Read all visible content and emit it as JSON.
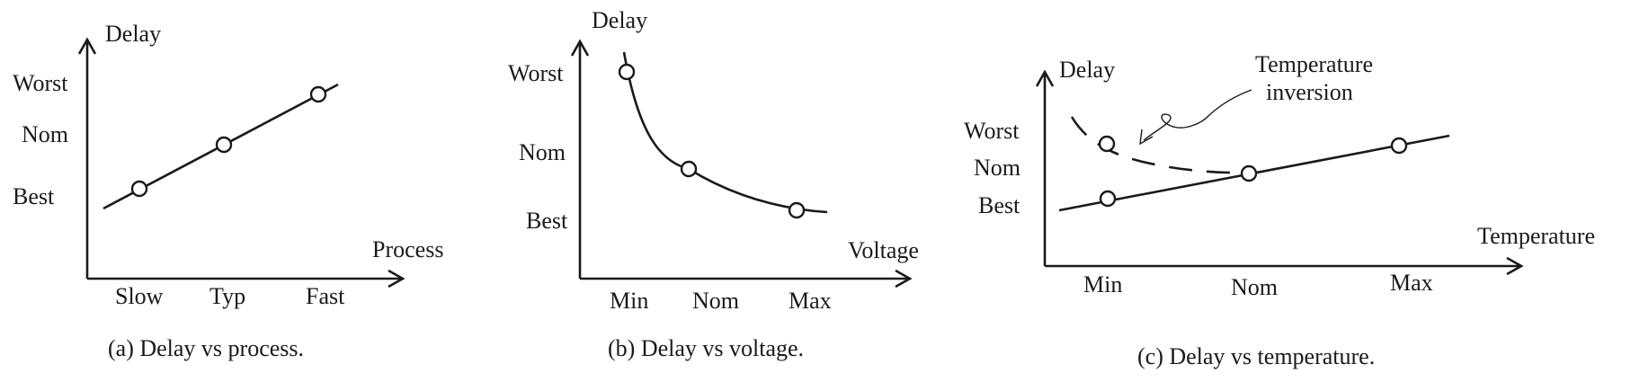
{
  "chart_data": [
    {
      "type": "line",
      "caption": "(a) Delay vs process.",
      "xlabel": "Process",
      "ylabel": "Delay",
      "categories": [
        "Slow",
        "Typ",
        "Fast"
      ],
      "y_ticks": [
        "Best",
        "Nom",
        "Worst"
      ],
      "series": [
        {
          "style": "solid",
          "values": [
            "Best",
            "Nom",
            "Worst"
          ]
        }
      ]
    },
    {
      "type": "line",
      "caption": "(b) Delay vs voltage.",
      "xlabel": "Voltage",
      "ylabel": "Delay",
      "categories": [
        "Min",
        "Nom",
        "Max"
      ],
      "y_ticks": [
        "Best",
        "Nom",
        "Worst"
      ],
      "series": [
        {
          "style": "solid",
          "shape": "decreasing convex curve",
          "values": [
            "Worst",
            "Nom",
            "Best"
          ]
        }
      ]
    },
    {
      "type": "line",
      "caption": "(c) Delay vs temperature.",
      "xlabel": "Temperature",
      "ylabel": "Delay",
      "categories": [
        "Min",
        "Nom",
        "Max"
      ],
      "y_ticks": [
        "Best",
        "Nom",
        "Worst"
      ],
      "annotation": "Temperature\ninversion",
      "series": [
        {
          "style": "solid",
          "values": [
            "Best",
            "Nom",
            "Worst"
          ]
        },
        {
          "style": "dashed",
          "values": [
            "Worst",
            "Nom",
            null
          ]
        }
      ]
    }
  ]
}
